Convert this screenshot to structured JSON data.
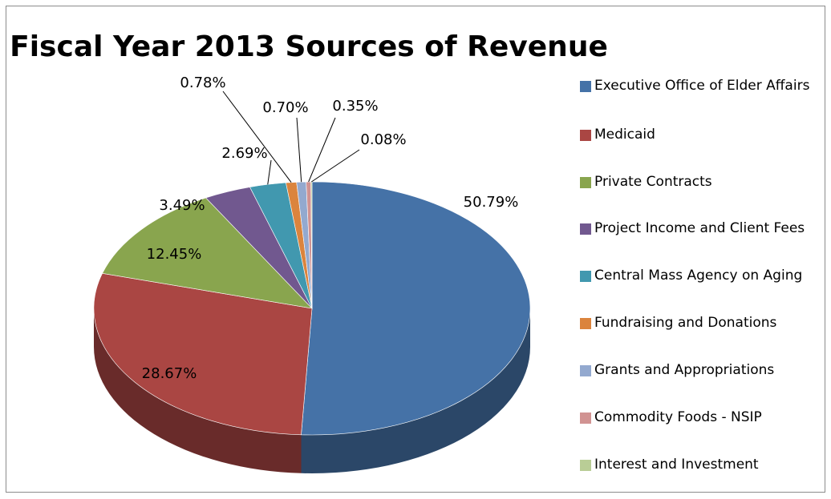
{
  "chart_data": {
    "type": "pie",
    "title": "Fiscal Year 2013 Sources of Revenue",
    "legend_position": "right",
    "slices": [
      {
        "label": "Executive Office of Elder Affairs",
        "value": 50.79,
        "display": "50.79%",
        "color": "#4572A7"
      },
      {
        "label": "Medicaid",
        "value": 28.67,
        "display": "28.67%",
        "color": "#AA4643"
      },
      {
        "label": "Private Contracts",
        "value": 12.45,
        "display": "12.45%",
        "color": "#89A54E"
      },
      {
        "label": "Project Income and Client Fees",
        "value": 3.49,
        "display": "3.49%",
        "color": "#71588F"
      },
      {
        "label": "Central Mass  Agency on Aging",
        "value": 2.69,
        "display": "2.69%",
        "color": "#4198AF"
      },
      {
        "label": "Fundraising and Donations",
        "value": 0.78,
        "display": "0.78%",
        "color": "#DB843D"
      },
      {
        "label": "Grants and Appropriations",
        "value": 0.7,
        "display": "0.70%",
        "color": "#93A9CF"
      },
      {
        "label": "Commodity Foods - NSIP",
        "value": 0.35,
        "display": "0.35%",
        "color": "#D19392"
      },
      {
        "label": "Interest and Investment",
        "value": 0.08,
        "display": "0.08%",
        "color": "#B9CD96"
      }
    ]
  }
}
